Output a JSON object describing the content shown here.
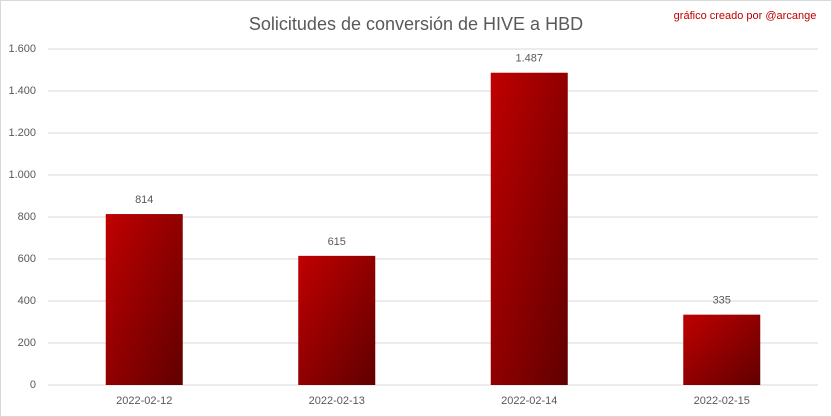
{
  "chart_data": {
    "type": "bar",
    "title": "Solicitudes de conversión de HIVE a HBD",
    "annotation": "gráfico creado por @arcange",
    "categories": [
      "2022-02-12",
      "2022-02-13",
      "2022-02-14",
      "2022-02-15"
    ],
    "values": [
      814,
      615,
      1487,
      335
    ],
    "value_labels": [
      "814",
      "615",
      "1.487",
      "335"
    ],
    "color": "#c00000",
    "ylim": [
      0,
      1600
    ],
    "yticks": [
      0,
      200,
      400,
      600,
      800,
      {
        "value": 1000,
        "label": "1.000"
      },
      {
        "value": 1200,
        "label": "1.200"
      },
      {
        "value": 1400,
        "label": "1.400"
      },
      {
        "value": 1600,
        "label": "1.600"
      }
    ],
    "grid": true
  }
}
